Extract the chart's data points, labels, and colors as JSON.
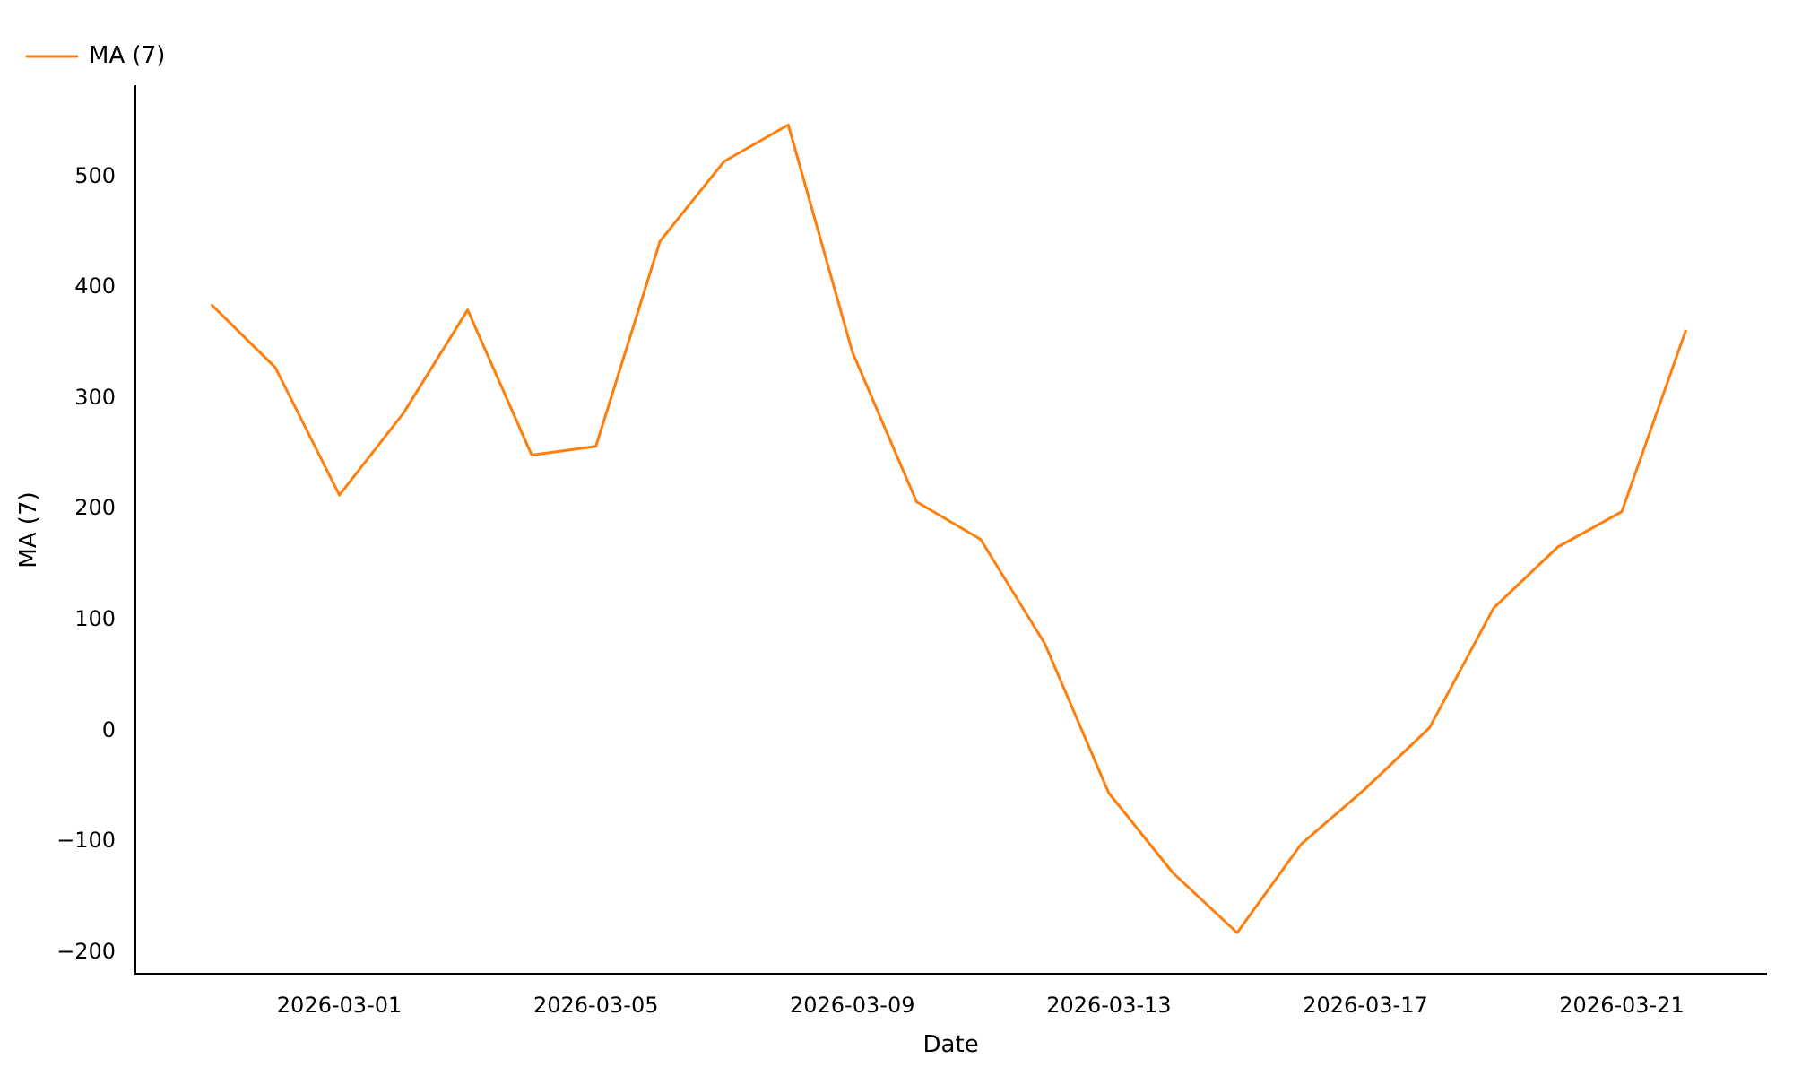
{
  "chart_data": {
    "type": "line",
    "xlabel": "Date",
    "ylabel": "MA (7)",
    "x": [
      "2026-02-27",
      "2026-02-28",
      "2026-03-01",
      "2026-03-02",
      "2026-03-03",
      "2026-03-04",
      "2026-03-05",
      "2026-03-06",
      "2026-03-07",
      "2026-03-08",
      "2026-03-09",
      "2026-03-10",
      "2026-03-11",
      "2026-03-12",
      "2026-03-13",
      "2026-03-14",
      "2026-03-15",
      "2026-03-16",
      "2026-03-17",
      "2026-03-18",
      "2026-03-19",
      "2026-03-20",
      "2026-03-21",
      "2026-03-22"
    ],
    "series": [
      {
        "name": "MA (7)",
        "color": "#ff7f0e",
        "values": [
          385,
          328,
          213,
          287,
          380,
          249,
          257,
          442,
          514,
          547,
          342,
          207,
          173,
          79,
          -56,
          -128,
          -182,
          -102,
          -52,
          3,
          111,
          166,
          198,
          362
        ]
      }
    ],
    "xlim": [
      "2026-02-25T19:40",
      "2026-03-23T06:00"
    ],
    "xticks": [
      "2026-03-01",
      "2026-03-05",
      "2026-03-09",
      "2026-03-13",
      "2026-03-17",
      "2026-03-21"
    ],
    "ylim": [
      -219,
      582
    ],
    "yticks": [
      -200,
      -100,
      0,
      100,
      200,
      300,
      400,
      500
    ],
    "grid": false,
    "legend": "top left",
    "marker": "none",
    "line_style": "solid"
  }
}
